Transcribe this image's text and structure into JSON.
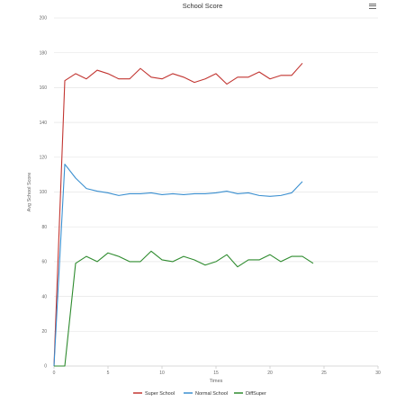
{
  "menu_icon": "hamburger-menu-icon",
  "chart_data": {
    "type": "line",
    "title": "School Score",
    "xlabel": "Times",
    "ylabel": "Avg School Score",
    "xlim": [
      0,
      30
    ],
    "ylim": [
      0,
      200
    ],
    "x_ticks": [
      0,
      5,
      10,
      15,
      20,
      25,
      30
    ],
    "y_ticks": [
      0,
      20,
      40,
      60,
      80,
      100,
      120,
      140,
      160,
      180,
      200
    ],
    "grid": true,
    "legend": "bottom-center",
    "series": [
      {
        "name": "Super School",
        "color": "#c23531",
        "x": [
          0,
          1,
          2,
          3,
          4,
          5,
          6,
          7,
          8,
          9,
          10,
          11,
          12,
          13,
          14,
          15,
          16,
          17,
          18,
          19,
          20,
          21,
          22,
          23
        ],
        "values": [
          0,
          164,
          168,
          165,
          170,
          168,
          165,
          165,
          171,
          166,
          165,
          168,
          166,
          163,
          165,
          168,
          162,
          166,
          166,
          169,
          165,
          167,
          167,
          174
        ]
      },
      {
        "name": "Normal School",
        "color": "#3a8fd0",
        "x": [
          0,
          1,
          2,
          3,
          4,
          5,
          6,
          7,
          8,
          9,
          10,
          11,
          12,
          13,
          14,
          15,
          16,
          17,
          18,
          19,
          20,
          21,
          22,
          23
        ],
        "values": [
          0,
          116,
          108,
          102,
          100.5,
          99.5,
          98,
          99,
          99,
          99.5,
          98.5,
          99,
          98.5,
          99,
          99,
          99.5,
          100.5,
          99,
          99.5,
          98,
          97.5,
          98,
          99.5,
          106
        ]
      },
      {
        "name": "DiffSuper",
        "color": "#2e8b2e",
        "x": [
          0,
          1,
          2,
          3,
          4,
          5,
          6,
          7,
          8,
          9,
          10,
          11,
          12,
          13,
          14,
          15,
          16,
          17,
          18,
          19,
          20,
          21,
          22,
          23,
          24
        ],
        "values": [
          0,
          0,
          59,
          63,
          60,
          65,
          63,
          60,
          60,
          66,
          61,
          60,
          63,
          61,
          58,
          60,
          64,
          57,
          61,
          61,
          64,
          60,
          63,
          63,
          59
        ]
      }
    ]
  }
}
